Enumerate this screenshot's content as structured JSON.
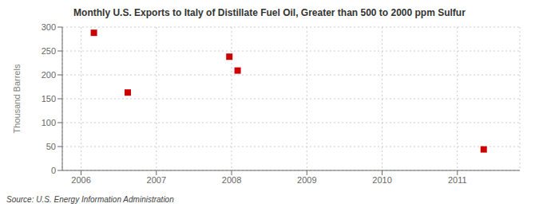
{
  "chart_data": {
    "type": "scatter",
    "title": "Monthly U.S. Exports to Italy of Distillate Fuel Oil, Greater than 500 to 2000 ppm Sulfur",
    "y_label": "Thousand Barrels",
    "annotations": [
      "Source: U.S. Energy Information Administration"
    ],
    "x": [
      2006.17,
      2006.62,
      2007.97,
      2008.08,
      2011.35
    ],
    "values": [
      288,
      163,
      238,
      209,
      44
    ],
    "color": "#cc0000",
    "marker": "square",
    "xlim": [
      2005.75,
      2011.83
    ],
    "ylim": [
      0,
      300
    ],
    "xticks": [
      2006,
      2007,
      2008,
      2009,
      2010,
      2011
    ],
    "yticks": [
      0,
      50,
      100,
      150,
      200,
      250,
      300
    ],
    "grid": true
  }
}
